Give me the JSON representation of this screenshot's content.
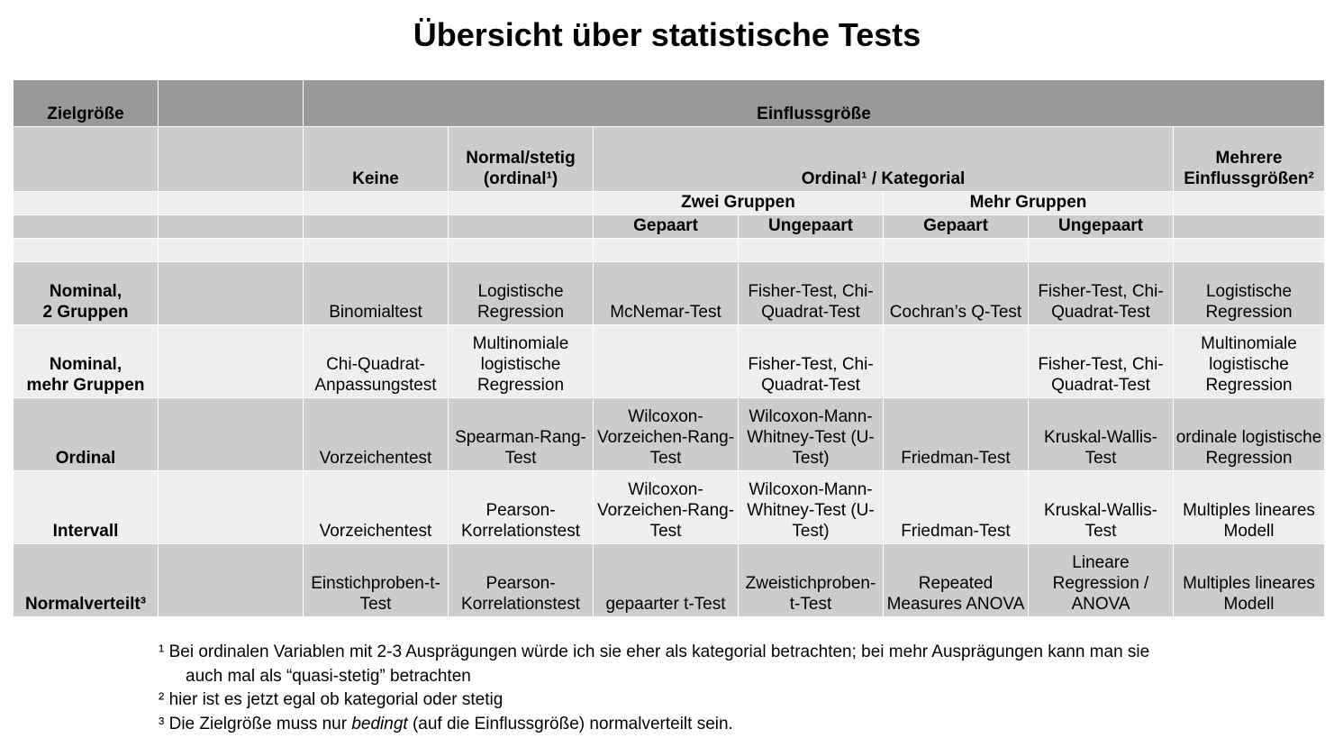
{
  "title": "Übersicht über statistische Tests",
  "header": {
    "zielgroesse": "Zielgröße",
    "einflussgroesse": "Einflussgröße",
    "keine": "Keine",
    "normal_stetig": "Normal/stetig (ordinal¹)",
    "ordinal_kategorial": "Ordinal¹ / Kategorial",
    "mehrere": "Mehrere Einflussgrößen²",
    "zwei_gruppen": "Zwei Gruppen",
    "mehr_gruppen": "Mehr Gruppen",
    "gepaart": "Gepaart",
    "ungepaart": "Ungepaart"
  },
  "rows": [
    {
      "label": "Nominal,\n2 Gruppen",
      "cells": [
        "Binomialtest",
        "Logistische Regression",
        "McNemar-Test",
        "Fisher-Test, Chi-Quadrat-Test",
        "Cochran’s Q-Test",
        "Fisher-Test, Chi-Quadrat-Test",
        "Logistische Regression"
      ]
    },
    {
      "label": "Nominal,\nmehr Gruppen",
      "cells": [
        "Chi-Quadrat-Anpassungstest",
        "Multinomiale logistische Regression",
        "",
        "Fisher-Test, Chi-Quadrat-Test",
        "",
        "Fisher-Test, Chi-Quadrat-Test",
        "Multinomiale logistische Regression"
      ]
    },
    {
      "label": "Ordinal",
      "cells": [
        "Vorzeichentest",
        "Spearman-Rang-Test",
        "Wilcoxon-Vorzeichen-Rang-Test",
        "Wilcoxon-Mann-Whitney-Test (U-Test)",
        "Friedman-Test",
        "Kruskal-Wallis-Test",
        "ordinale logistische Regression"
      ]
    },
    {
      "label": "Intervall",
      "cells": [
        "Vorzeichentest",
        "Pearson-Korrelationstest",
        "Wilcoxon-Vorzeichen-Rang-Test",
        "Wilcoxon-Mann-Whitney-Test (U-Test)",
        "Friedman-Test",
        "Kruskal-Wallis-Test",
        "Multiples lineares Modell"
      ]
    },
    {
      "label": "Normalverteilt³",
      "cells": [
        "Einstichproben-t-Test",
        "Pearson-Korrelationstest",
        "gepaarter t-Test",
        "Zweistichproben-t-Test",
        "Repeated Measures ANOVA",
        "Lineare Regression / ANOVA",
        "Multiples lineares Modell"
      ]
    }
  ],
  "footnotes": {
    "fn1_line1": "¹ Bei ordinalen Variablen mit 2-3 Ausprägungen würde ich sie eher als kategorial betrachten; bei mehr Ausprägungen kann man sie",
    "fn1_line2": "auch mal als  “quasi-stetig” betrachten",
    "fn2": "² hier ist es jetzt egal ob kategorial oder stetig",
    "fn3_pre": "³ Die Zielgröße muss nur ",
    "fn3_em": "bedingt",
    "fn3_post": " (auf die Einflussgröße) normalverteilt sein."
  }
}
